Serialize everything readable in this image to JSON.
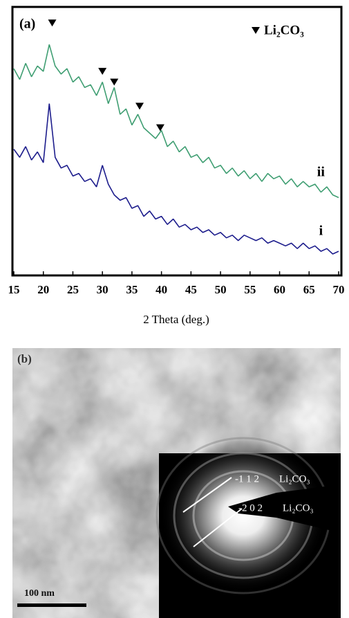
{
  "chart_data": {
    "type": "line",
    "panel_label": "(a)",
    "x_label": "2 Theta (deg.)",
    "x": [
      15,
      16,
      17,
      18,
      19,
      20,
      21,
      22,
      23,
      24,
      25,
      26,
      27,
      28,
      29,
      30,
      31,
      32,
      33,
      34,
      35,
      36,
      37,
      38,
      39,
      40,
      41,
      42,
      43,
      44,
      45,
      46,
      47,
      48,
      49,
      50,
      51,
      52,
      53,
      54,
      55,
      56,
      57,
      58,
      59,
      60,
      61,
      62,
      63,
      64,
      65,
      66,
      67,
      68,
      69,
      70
    ],
    "series": [
      {
        "name": "ii",
        "color": "#3f9e72",
        "values": [
          77,
          73,
          79,
          74,
          78,
          76,
          86,
          78,
          75,
          77,
          72,
          74,
          70,
          71,
          67,
          72,
          64,
          70,
          60,
          62,
          56,
          60,
          55,
          53,
          51,
          54,
          48,
          50,
          46,
          48,
          44,
          45,
          42,
          44,
          40,
          41,
          38,
          40,
          37,
          39,
          36,
          38,
          35,
          38,
          36,
          37,
          34,
          36,
          33,
          35,
          33,
          34,
          31,
          33,
          30,
          29
        ]
      },
      {
        "name": "i",
        "color": "#1c1c8c",
        "values": [
          47,
          44,
          48,
          43,
          46,
          42,
          64,
          44,
          40,
          41,
          37,
          38,
          35,
          36,
          33,
          41,
          34,
          30,
          28,
          29,
          25,
          26,
          22,
          24,
          21,
          22,
          19,
          21,
          18,
          19,
          17,
          18,
          16,
          17,
          15,
          16,
          14,
          15,
          13,
          15,
          14,
          13,
          14,
          12,
          13,
          12,
          11,
          12,
          10,
          12,
          10,
          11,
          9,
          10,
          8,
          9
        ]
      }
    ],
    "peak_markers": {
      "name": "Li₂CO₃",
      "x": [
        21.5,
        30,
        32,
        36.3,
        39.8
      ],
      "y": [
        94,
        76,
        72,
        63,
        55
      ]
    },
    "xlim": [
      15,
      70
    ],
    "ylim": [
      0,
      100
    ],
    "xticks": [
      15,
      20,
      25,
      30,
      35,
      40,
      45,
      50,
      55,
      60,
      65,
      70
    ]
  },
  "panel_b": {
    "label": "(b)",
    "scale_bar": "100 nm",
    "diffraction_rings": [
      {
        "hkl": "-1 1 2",
        "phase": "Li₂CO₃"
      },
      {
        "hkl": "-2 0 2",
        "phase": "Li₂CO₃"
      }
    ]
  }
}
